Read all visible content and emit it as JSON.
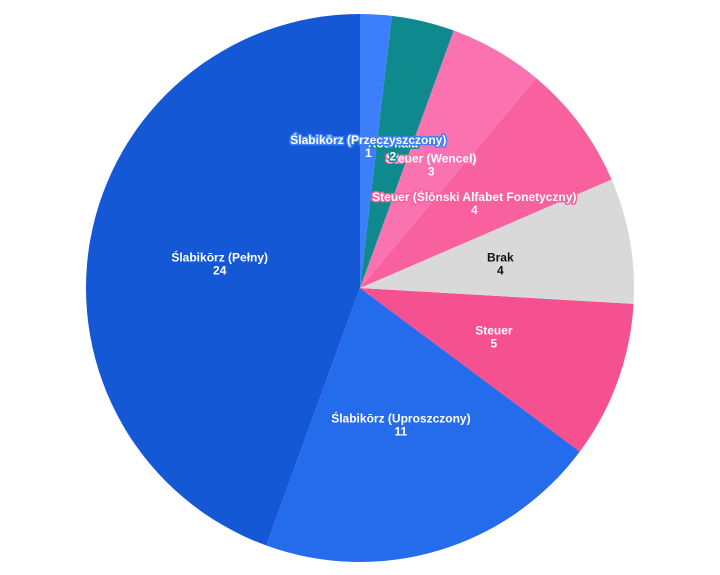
{
  "chart_data": {
    "type": "pie",
    "title": "",
    "slices": [
      {
        "label": "Ślabikōrz (Pełny)",
        "value": 24,
        "color": "#1558d6"
      },
      {
        "label": "Ślabikōrz (Uproszczony)",
        "value": 11,
        "color": "#256ced"
      },
      {
        "label": "Steuer",
        "value": 5,
        "color": "#f5508f"
      },
      {
        "label": "Brak",
        "value": 4,
        "color": "#d9d9d9"
      },
      {
        "label": "Steuer (Ślōnski Alfabet Fonetyczny)",
        "value": 4,
        "color": "#f8609e"
      },
      {
        "label": "Steuer (Wencel)",
        "value": 3,
        "color": "#fb72b0"
      },
      {
        "label": "Kosmala",
        "value": 2,
        "color": "#0e8a8e"
      },
      {
        "label": "Ślabikōrz (Przeczyszczony)",
        "value": 1,
        "color": "#3d7ffb"
      }
    ]
  }
}
